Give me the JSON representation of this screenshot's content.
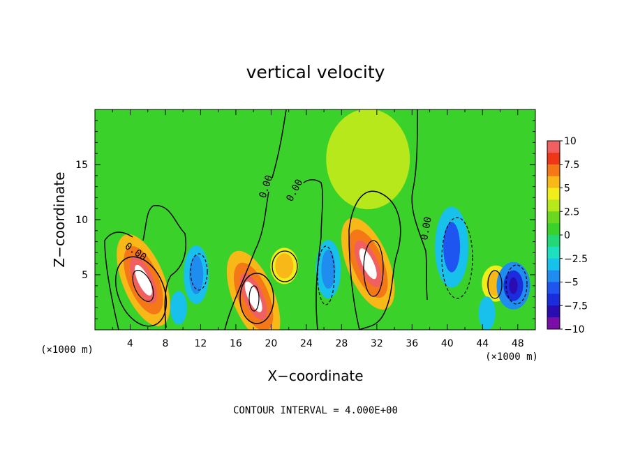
{
  "chart_data": {
    "type": "heatmap",
    "title": "vertical velocity",
    "xlabel": "X−coordinate",
    "ylabel": "Z−coordinate",
    "x_unit": "(×1000 m)",
    "y_unit": "(×1000 m)",
    "xlim": [
      0,
      50
    ],
    "ylim": [
      0,
      20
    ],
    "x_ticks": [
      4,
      8,
      12,
      16,
      20,
      24,
      28,
      32,
      36,
      40,
      44,
      48
    ],
    "y_ticks": [
      5,
      10,
      15
    ],
    "colorbar": {
      "ticks": [
        10,
        7.5,
        5,
        2.5,
        0,
        -2.5,
        -5,
        -7.5,
        -10
      ],
      "tick_labels": [
        "10",
        "7.5",
        "5",
        "2.5",
        "0",
        "−2.5",
        "−5",
        "−7.5",
        "−10"
      ],
      "range": [
        -10,
        10
      ]
    },
    "contour_labels": [
      "0.00",
      "0.00",
      "0.00",
      "0.00"
    ],
    "contour_interval_text": "CONTOUR INTERVAL = 4.000E+00",
    "features": [
      {
        "x": 5.5,
        "z": 4.5,
        "value": 10
      },
      {
        "x": 18.0,
        "z": 3.0,
        "value": 10
      },
      {
        "x": 31.0,
        "z": 6.0,
        "value": 10
      },
      {
        "x": 21.5,
        "z": 5.8,
        "value": 5
      },
      {
        "x": 45.5,
        "z": 4.2,
        "value": 5
      },
      {
        "x": 31.0,
        "z": 15.5,
        "value": 3
      },
      {
        "x": 11.5,
        "z": 5.0,
        "value": -5
      },
      {
        "x": 26.5,
        "z": 5.5,
        "value": -5
      },
      {
        "x": 40.5,
        "z": 7.5,
        "value": -6
      },
      {
        "x": 47.5,
        "z": 4.0,
        "value": -9
      },
      {
        "x": 9.5,
        "z": 2.0,
        "value": -4
      },
      {
        "x": 44.5,
        "z": 1.5,
        "value": -4
      }
    ]
  }
}
